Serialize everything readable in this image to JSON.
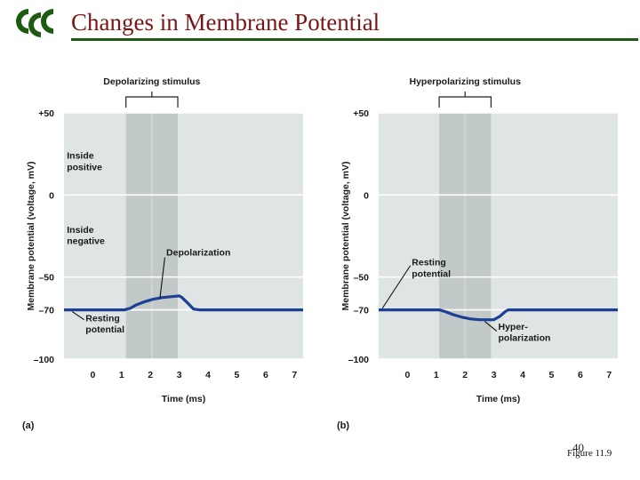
{
  "slide": {
    "title": "Changes in Membrane Potential",
    "page_number": "40",
    "figure_ref": "Figure 11.9",
    "colors": {
      "title": "#7a1616",
      "rule": "#1f5a12",
      "logo": "#1f5a12",
      "trace": "#1d3f96",
      "plot_bg": "#dfe4e4",
      "stim_band": "#c2c9c9"
    }
  },
  "chart_data": [
    {
      "type": "line",
      "panel_label": "(a)",
      "stimulus_label": "Depolarizing stimulus",
      "ylabel": "Membrane potential (voltage, mV)",
      "xlabel": "Time (ms)",
      "xlim": [
        -1,
        7.3
      ],
      "ylim": [
        -100,
        50
      ],
      "x_ticks": [
        0,
        1,
        2,
        3,
        4,
        5,
        6,
        7
      ],
      "y_ticks": [
        {
          "value": 50,
          "label": "+50"
        },
        {
          "value": 0,
          "label": "0"
        },
        {
          "value": -50,
          "label": "–50"
        },
        {
          "value": -70,
          "label": "–70"
        },
        {
          "value": -100,
          "label": "–100"
        }
      ],
      "stimulus_window": [
        1.15,
        2.95
      ],
      "series": [
        {
          "name": "membrane potential",
          "x": [
            -1,
            1.1,
            1.3,
            1.5,
            1.8,
            2.1,
            2.4,
            2.7,
            3.0,
            3.1,
            3.3,
            3.5,
            3.7,
            7.3
          ],
          "y": [
            -70,
            -70,
            -69,
            -67,
            -65,
            -63.5,
            -62.5,
            -62,
            -61.5,
            -62.5,
            -66,
            -69.5,
            -70,
            -70
          ]
        }
      ],
      "annotations": [
        {
          "text": "Inside positive",
          "lines": [
            "Inside",
            "positive"
          ],
          "x": -0.9,
          "y": 22
        },
        {
          "text": "Inside negative",
          "lines": [
            "Inside",
            "negative"
          ],
          "x": -0.9,
          "y": -23
        },
        {
          "text": "Depolarization",
          "lines": [
            "Depolarization"
          ],
          "x": 2.55,
          "y": -37,
          "arrow_from": [
            2.5,
            -38
          ],
          "arrow_to": [
            2.33,
            -63
          ]
        },
        {
          "text": "Resting potential",
          "lines": [
            "Resting",
            "potential"
          ],
          "x": -0.25,
          "y": -77,
          "arrow_from": [
            -0.3,
            -76
          ],
          "arrow_to": [
            -0.72,
            -71
          ]
        }
      ]
    },
    {
      "type": "line",
      "panel_label": "(b)",
      "stimulus_label": "Hyperpolarizing stimulus",
      "ylabel": "Membrane potential (voltage, mV)",
      "xlabel": "Time (ms)",
      "xlim": [
        -1,
        7.3
      ],
      "ylim": [
        -100,
        50
      ],
      "x_ticks": [
        0,
        1,
        2,
        3,
        4,
        5,
        6,
        7
      ],
      "y_ticks": [
        {
          "value": 50,
          "label": "+50"
        },
        {
          "value": 0,
          "label": "0"
        },
        {
          "value": -50,
          "label": "–50"
        },
        {
          "value": -70,
          "label": "–70"
        },
        {
          "value": -100,
          "label": "–100"
        }
      ],
      "stimulus_window": [
        1.1,
        2.9
      ],
      "series": [
        {
          "name": "membrane potential",
          "x": [
            -1,
            1.1,
            1.3,
            1.6,
            1.9,
            2.2,
            2.5,
            2.8,
            3.0,
            3.2,
            3.4,
            3.5,
            7.3
          ],
          "y": [
            -70,
            -70,
            -71,
            -73,
            -74.5,
            -75.5,
            -76,
            -76,
            -76,
            -74,
            -71,
            -70,
            -70
          ]
        }
      ],
      "annotations": [
        {
          "text": "Resting potential",
          "lines": [
            "Resting",
            "potential"
          ],
          "x": 0.15,
          "y": -43,
          "arrow_from": [
            0.1,
            -43
          ],
          "arrow_to": [
            -0.87,
            -69
          ]
        },
        {
          "text": "Hyper-polarization",
          "lines": [
            "Hyper-",
            "polarization"
          ],
          "x": 3.15,
          "y": -82,
          "arrow_from": [
            3.1,
            -83
          ],
          "arrow_to": [
            2.68,
            -77
          ]
        }
      ]
    }
  ]
}
